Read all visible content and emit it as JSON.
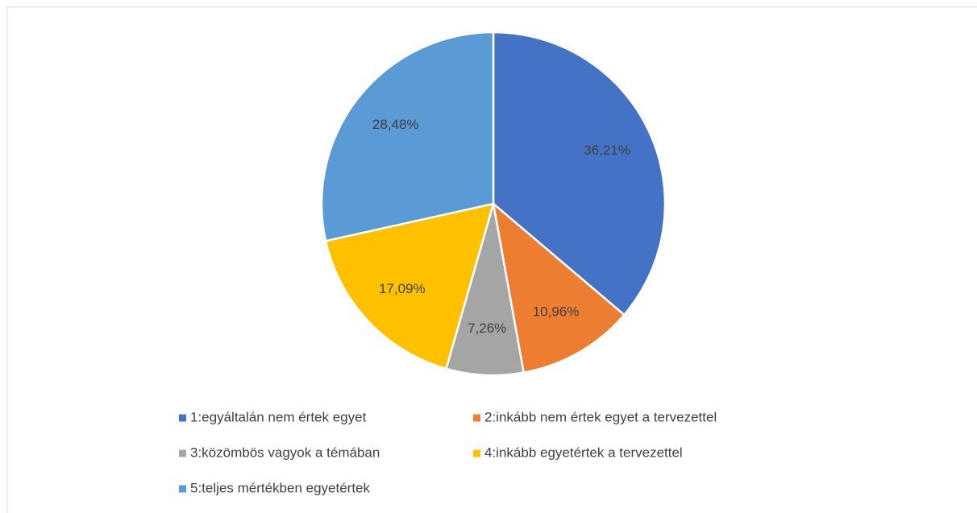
{
  "chart_data": {
    "type": "pie",
    "categories": [
      "1:egyáltalán nem értek egyet",
      "2:inkább nem értek egyet a tervezettel",
      "3:közömbös vagyok a témában",
      "4:inkább egyetértek a tervezettel",
      "5:teljes mértékben egyetértek"
    ],
    "values": [
      36.21,
      10.96,
      7.26,
      17.09,
      28.48
    ],
    "value_labels": [
      "36,21%",
      "10,96%",
      "7,26%",
      "17,09%",
      "28,48%"
    ],
    "colors": [
      "#4472c4",
      "#ed7d31",
      "#a5a5a5",
      "#ffc000",
      "#5b9bd5"
    ],
    "legend": "bottom"
  }
}
